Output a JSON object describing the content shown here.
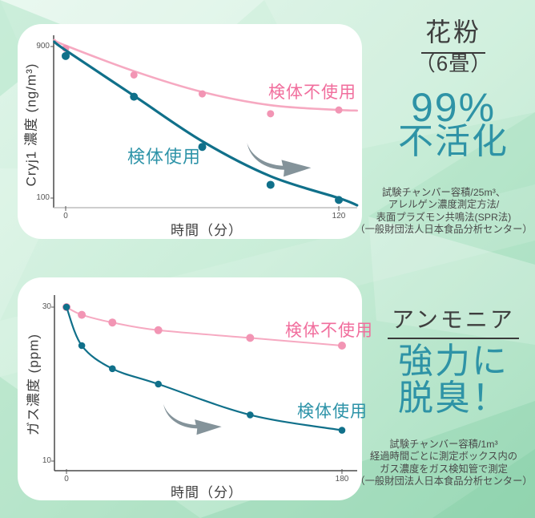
{
  "colors": {
    "pink_line": "#f6a9c1",
    "pink_dot": "#f295b4",
    "teal_line": "#10708a",
    "pink_label": "#f16e9d",
    "teal_label": "#2d93a8",
    "headline_teal": "#2e93a6",
    "title_dark": "#3e3e3e",
    "caption_gray": "#4a4a4a",
    "arrow_gray": "#7a8a91",
    "background_green": "#c9edd8"
  },
  "right_column": {
    "pollen": {
      "title": "花粉",
      "subtitle": "（6畳）",
      "headline_line1": "99%",
      "headline_line2": "不活化",
      "notes": [
        "試験チャンバー容積/25m³、",
        "アレルゲン濃度測定方法/",
        "表面プラズモン共鳴法(SPR法)",
        "（一般財団法人日本食品分析センター）"
      ]
    },
    "ammonia": {
      "title": "アンモニア",
      "headline_line1": "強力に",
      "headline_line2": "脱臭！",
      "notes": [
        "試験チャンバー容積/1m³",
        "経過時間ごとに測定ボックス内の",
        "ガス濃度をガス検知管で測定",
        "（一般財団法人日本食品分析センター）"
      ]
    }
  },
  "chart_data": [
    {
      "type": "line",
      "xlabel": "時間（分）",
      "ylabel": "Cryj1 濃度 (ng/m³)",
      "x_ticks": [
        0,
        120
      ],
      "y_ticks": [
        900,
        100
      ],
      "xlim": [
        -6,
        128
      ],
      "ylim": [
        50,
        960
      ],
      "grid": false,
      "legend_position": "inline",
      "series": [
        {
          "name": "検体不使用",
          "color": "#f6a9c1",
          "dot_color": "#f295b4",
          "x": [
            0,
            30,
            60,
            90,
            120
          ],
          "y": [
            890,
            750,
            650,
            545,
            565
          ],
          "trend_x": [
            -5,
            0,
            30,
            60,
            90,
            120,
            128
          ],
          "trend_y": [
            935,
            905,
            770,
            660,
            590,
            565,
            562
          ]
        },
        {
          "name": "検体使用",
          "color": "#10708a",
          "dot_color": "#10708a",
          "x": [
            0,
            30,
            60,
            90,
            120
          ],
          "y": [
            850,
            635,
            370,
            170,
            90
          ],
          "trend_x": [
            -5,
            0,
            30,
            60,
            90,
            120,
            128
          ],
          "trend_y": [
            925,
            880,
            640,
            400,
            215,
            100,
            62
          ]
        }
      ]
    },
    {
      "type": "line",
      "xlabel": "時間（分）",
      "ylabel": "ガス濃度 (ppm)",
      "x_ticks": [
        0,
        180
      ],
      "y_ticks": [
        30,
        10
      ],
      "xlim": [
        -8,
        190
      ],
      "ylim": [
        8,
        32
      ],
      "grid": false,
      "legend_position": "inline",
      "series": [
        {
          "name": "検体不使用",
          "color": "#f6a9c1",
          "dot_color": "#f295b4",
          "x": [
            0,
            10,
            30,
            60,
            120,
            180
          ],
          "y": [
            30,
            29,
            28,
            27,
            26,
            25
          ]
        },
        {
          "name": "検体使用",
          "color": "#10708a",
          "dot_color": "#10708a",
          "x": [
            0,
            10,
            30,
            60,
            120,
            180
          ],
          "y": [
            30,
            25,
            22,
            20,
            16,
            14
          ]
        }
      ]
    }
  ]
}
